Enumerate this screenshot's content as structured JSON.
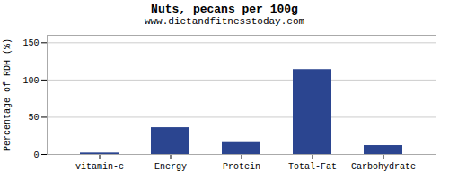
{
  "chart_data": {
    "type": "bar",
    "title": "Nuts, pecans per 100g",
    "subtitle": "www.dietandfitnesstoday.com",
    "ylabel": "Percentage of RDH (%)",
    "categories": [
      "vitamin-c",
      "Energy",
      "Protein",
      "Total-Fat",
      "Carbohydrate"
    ],
    "values": [
      2,
      36,
      16,
      114,
      12
    ],
    "color": "#2b4590",
    "ylim": [
      0,
      160
    ],
    "yticks": [
      0,
      50,
      100,
      150
    ],
    "grid": true
  }
}
